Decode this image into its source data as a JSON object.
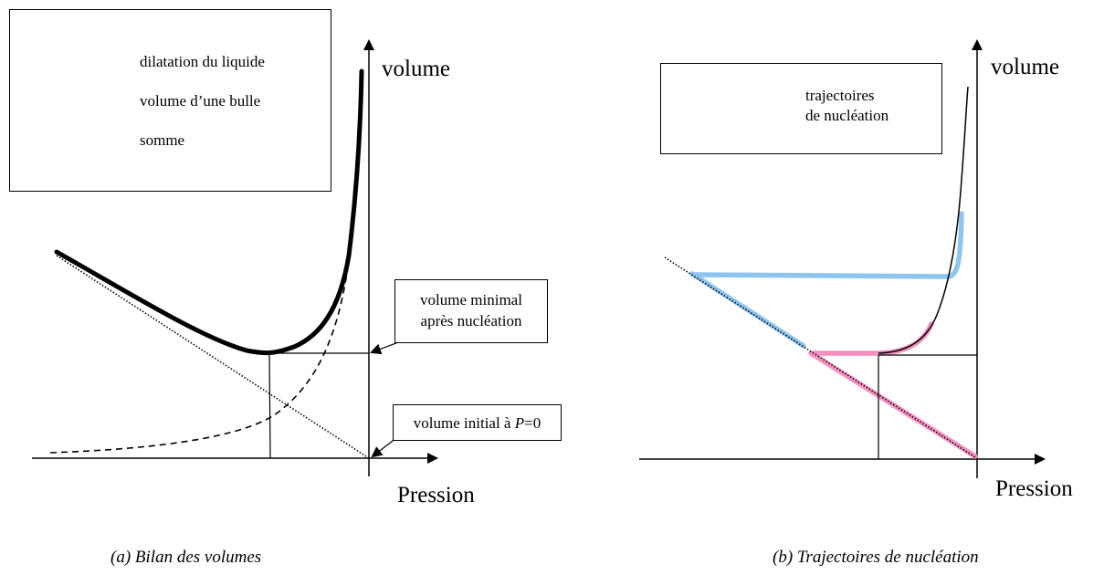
{
  "panel_a": {
    "legend": {
      "items": [
        {
          "label": "dilatation du liquide",
          "style": "dotted"
        },
        {
          "label": "volume d’une bulle",
          "style": "dashed"
        },
        {
          "label": "somme",
          "style": "thick"
        }
      ]
    },
    "y_axis_label": "volume",
    "x_axis_label": "Pression",
    "callout_min_line1": "volume minimal",
    "callout_min_line2": "après nucléation",
    "callout_init_text": "volume initial à ",
    "callout_init_var": "P",
    "callout_init_value": "=0",
    "caption": "(a) Bilan des volumes"
  },
  "panel_b": {
    "legend": {
      "items": [
        {
          "label_line1": "trajectoires",
          "label_line2": "de nucléation",
          "color": "#f48fbf"
        },
        {
          "color": "#8ec4f0"
        }
      ]
    },
    "y_axis_label": "volume",
    "x_axis_label": "Pression",
    "caption": "(b) Trajectoires de nucléation"
  },
  "colors": {
    "pink": "#f48fbf",
    "blue": "#8ec4f0",
    "ink": "#000000"
  }
}
